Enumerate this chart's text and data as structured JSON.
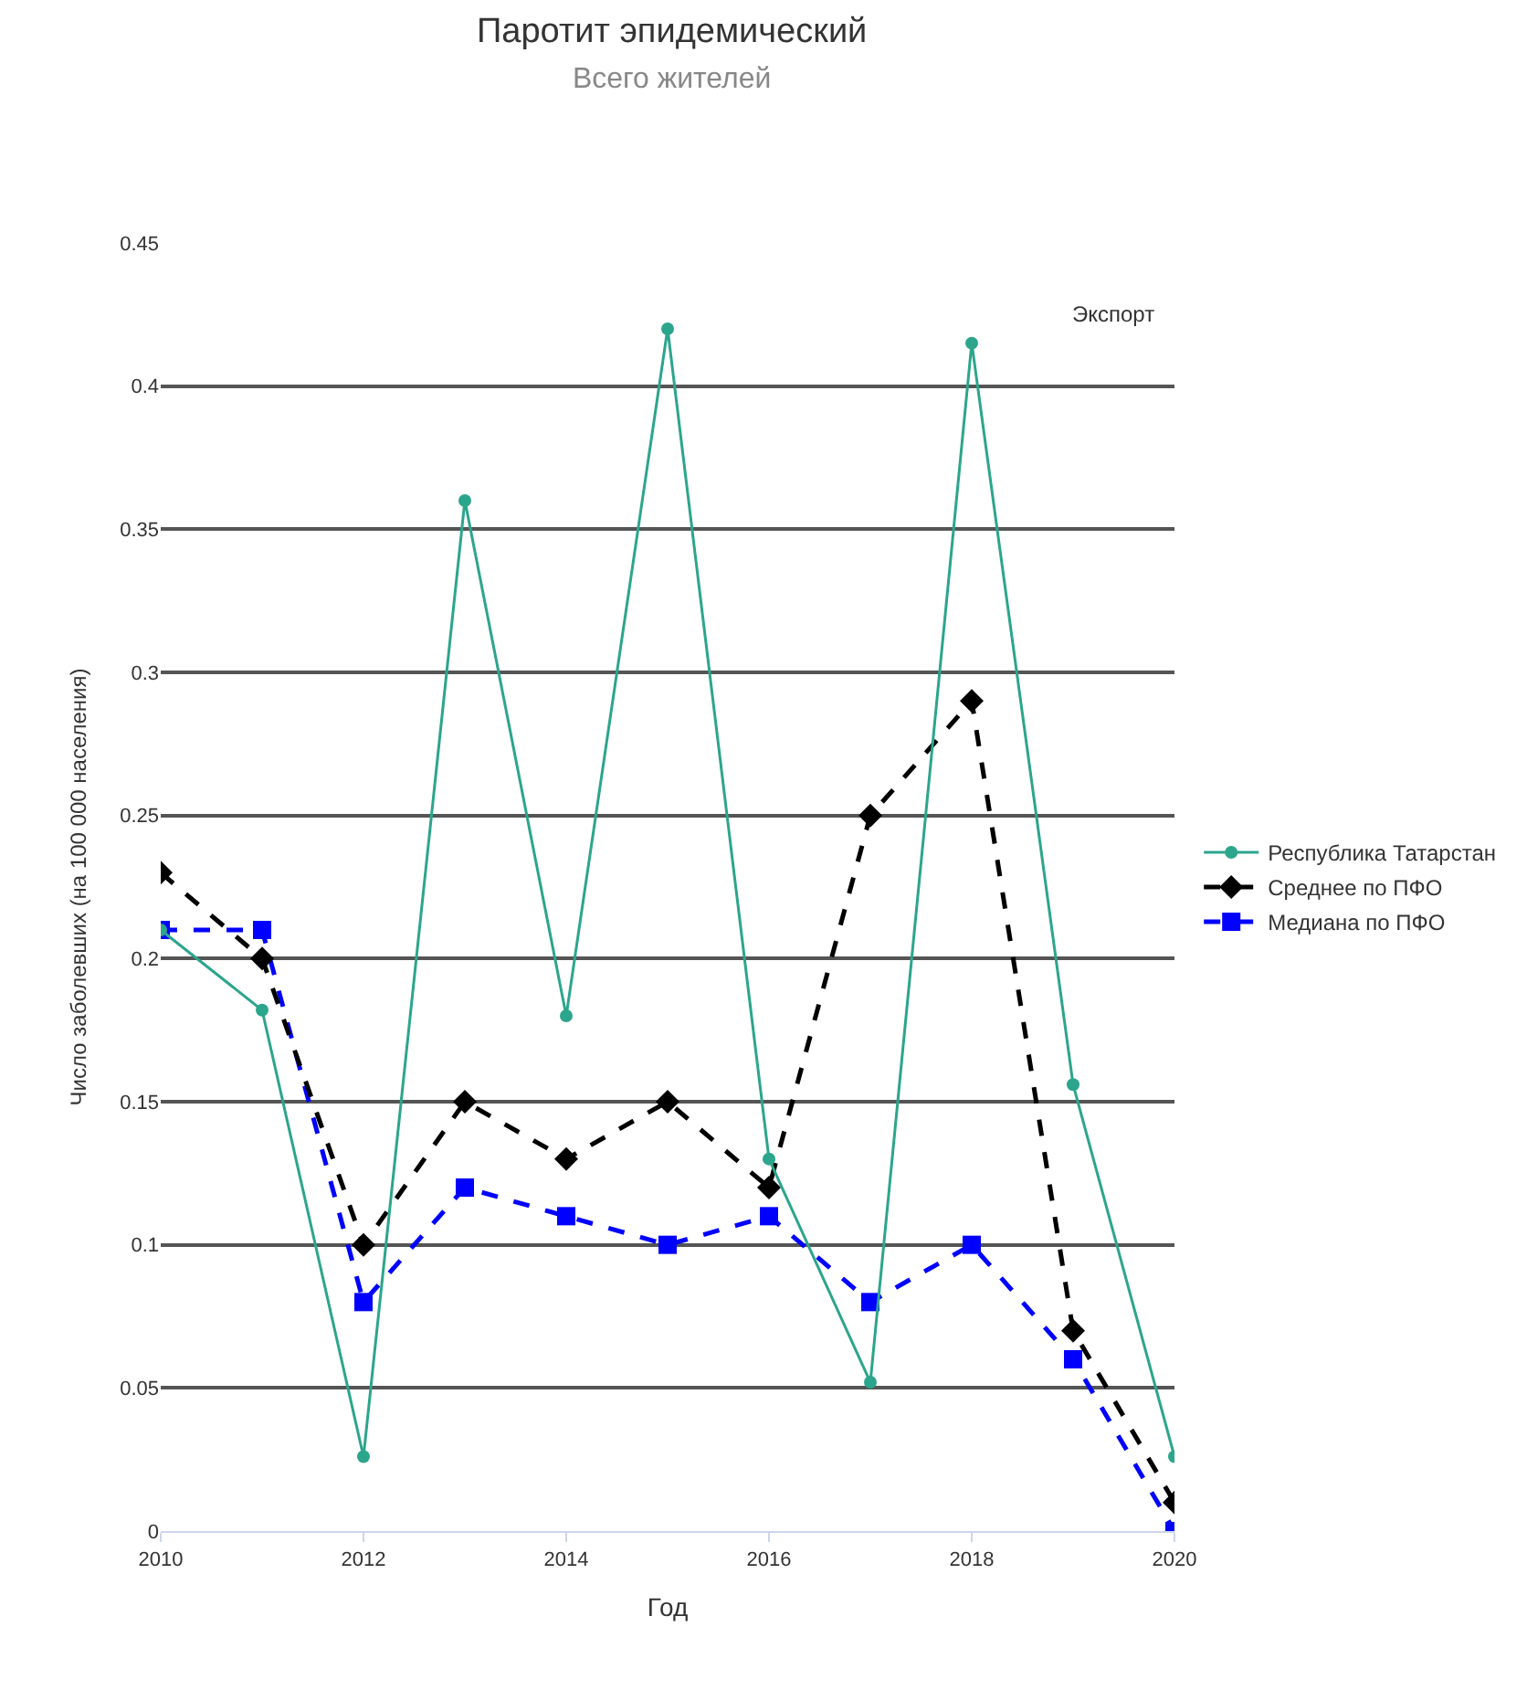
{
  "chart_data": {
    "type": "line",
    "title": "Паротит эпидемический",
    "subtitle": "Всего жителей",
    "xlabel": "Год",
    "ylabel": "Число заболевших (на 100 000 населения)",
    "annotations": [
      "Экспорт"
    ],
    "x": [
      2010,
      2011,
      2012,
      2013,
      2014,
      2015,
      2016,
      2017,
      2018,
      2019,
      2020
    ],
    "series": [
      {
        "name": "Республика Татарстан",
        "color": "#2ca58d",
        "marker": "circle",
        "line_style": "solid",
        "values": [
          0.21,
          0.182,
          0.026,
          0.36,
          0.18,
          0.42,
          0.13,
          0.052,
          0.415,
          0.156,
          0.026
        ]
      },
      {
        "name": "Среднее по ПФО",
        "color": "#000000",
        "marker": "diamond",
        "line_style": "dashed",
        "values": [
          0.23,
          0.2,
          0.1,
          0.15,
          0.13,
          0.15,
          0.12,
          0.25,
          0.29,
          0.07,
          0.01
        ]
      },
      {
        "name": "Медиана по ПФО",
        "color": "#0000ff",
        "marker": "square",
        "line_style": "dashed",
        "values": [
          0.21,
          0.21,
          0.08,
          0.12,
          0.11,
          0.1,
          0.11,
          0.08,
          0.1,
          0.06,
          0.0
        ]
      }
    ],
    "xlim": [
      2010,
      2020
    ],
    "xticks": [
      2010,
      2012,
      2014,
      2016,
      2018,
      2020
    ],
    "ylim": [
      0,
      0.45
    ],
    "yticks": [
      0,
      0.05,
      0.1,
      0.15,
      0.2,
      0.25,
      0.3,
      0.35,
      0.4,
      0.45
    ],
    "grid": "y",
    "legend": "right"
  }
}
